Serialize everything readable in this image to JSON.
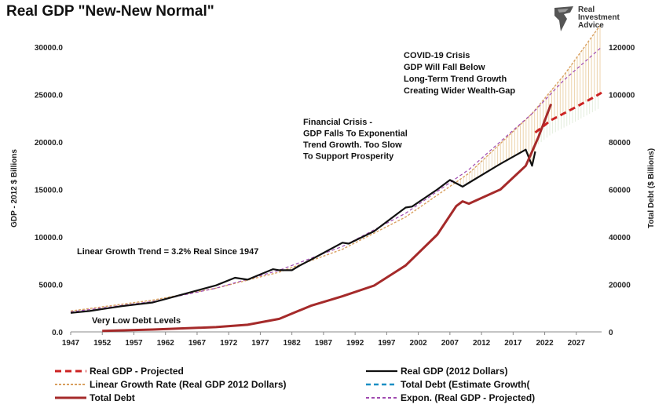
{
  "chart_data": {
    "type": "line",
    "title": "Real GDP \"New-New Normal\"",
    "ylabel": "GDP - 2012 $ Billions",
    "y2label": "Total Debt ($ Billions)",
    "xlim": [
      1947,
      2031
    ],
    "ylim": [
      0,
      30000
    ],
    "y2lim": [
      0,
      120000
    ],
    "grid": false,
    "legend_position": "bottom",
    "x_ticks": [
      "1947",
      "1952",
      "1957",
      "1962",
      "1967",
      "1972",
      "1977",
      "1982",
      "1987",
      "1992",
      "1997",
      "2002",
      "2007",
      "2012",
      "2017",
      "2022",
      "2027"
    ],
    "y_ticks": [
      "0.0",
      "5000.0",
      "10000.0",
      "15000.0",
      "20000.0",
      "25000.0",
      "30000.0"
    ],
    "y2_ticks": [
      "0",
      "20000",
      "40000",
      "60000",
      "80000",
      "100000",
      "120000"
    ],
    "series": [
      {
        "name": "Real GDP (2012 Dollars)",
        "axis": "left",
        "color": "#111111",
        "x": [
          1947,
          1950,
          1955,
          1960,
          1965,
          1970,
          1973,
          1975,
          1979,
          1980,
          1982,
          1983,
          1985,
          1990,
          1991,
          1995,
          2000,
          2001,
          2005,
          2007,
          2009,
          2010,
          2015,
          2019,
          2020,
          2020.5
        ],
        "y": [
          2000,
          2200,
          2700,
          3100,
          4000,
          4900,
          5700,
          5500,
          6600,
          6500,
          6500,
          6900,
          7600,
          9400,
          9300,
          10600,
          13100,
          13200,
          15000,
          16000,
          15300,
          15700,
          17700,
          19200,
          17500,
          19000
        ]
      },
      {
        "name": "Total Debt",
        "axis": "right",
        "color": "#a52a2a",
        "x": [
          1952,
          1960,
          1970,
          1975,
          1980,
          1985,
          1990,
          1995,
          2000,
          2005,
          2008,
          2009,
          2010,
          2015,
          2019,
          2020,
          2021,
          2023
        ],
        "y": [
          400,
          1000,
          2000,
          3000,
          5500,
          11000,
          15000,
          19500,
          28000,
          41000,
          53000,
          55000,
          54000,
          60000,
          70000,
          76000,
          82000,
          96000
        ]
      },
      {
        "name": "Real GDP - Projected",
        "axis": "left",
        "color": "#cc2222",
        "dashed": true,
        "x": [
          2020.5,
          2023,
          2025,
          2027,
          2030,
          2031
        ],
        "y": [
          21000,
          22300,
          23000,
          23700,
          24800,
          25200
        ]
      },
      {
        "name": "Expon. (Real GDP - Projected)",
        "axis": "left",
        "color": "#a04ab0",
        "dashed": true,
        "x": [
          1947,
          1960,
          1970,
          1980,
          1990,
          2000,
          2010,
          2020,
          2025,
          2031
        ],
        "y": [
          2100,
          3200,
          4600,
          6500,
          9000,
          12500,
          17100,
          23000,
          26500,
          30000
        ]
      },
      {
        "name": "Linear Growth Rate (Real GDP 2012 Dollars)",
        "axis": "left",
        "color": "#d9a060",
        "dashed": true,
        "x": [
          1947,
          1960,
          1970,
          1980,
          1990,
          2000,
          2010,
          2020,
          2025,
          2031
        ],
        "y": [
          2200,
          3350,
          4600,
          6300,
          8700,
          12100,
          16700,
          23000,
          27000,
          32500
        ]
      },
      {
        "name": "Total Debt (Estimate Growth(",
        "axis": "right",
        "color": "#1a8fc4",
        "dashed": true,
        "x": [],
        "y": []
      }
    ],
    "annotations": [
      {
        "lines": [
          "COVID-19 Crisis",
          "GDP Will Fall Below",
          "Long-Term Trend Growth",
          "Creating Wider Wealth-Gap"
        ]
      },
      {
        "lines": [
          "Financial Crisis -",
          "GDP Falls To Exponential",
          "Trend Growth. Too Slow",
          "To Support Prosperity"
        ]
      },
      {
        "lines": [
          "Linear Growth Trend = 3.2% Real Since 1947"
        ]
      },
      {
        "lines": [
          "Very Low Debt Levels"
        ]
      }
    ]
  },
  "logo": {
    "lines": [
      "Real",
      "Investment",
      "Advice"
    ]
  }
}
